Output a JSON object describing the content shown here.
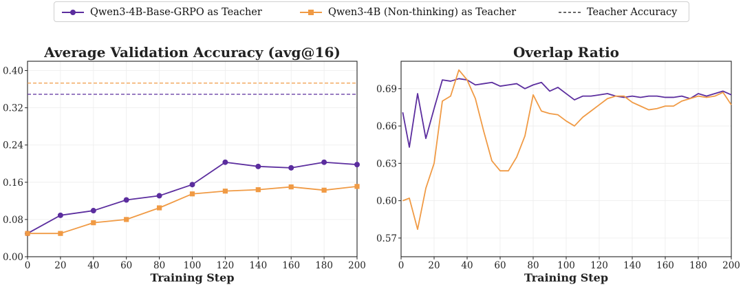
{
  "legend": {
    "items": [
      {
        "label": "Qwen3-4B-Base-GRPO as Teacher",
        "color": "#5b2d9e",
        "marker": "circle",
        "style": "solid"
      },
      {
        "label": "Qwen3-4B (Non-thinking) as Teacher",
        "color": "#f09a44",
        "marker": "square",
        "style": "solid"
      },
      {
        "label": "Teacher Accuracy",
        "color": "#333333",
        "marker": "none",
        "style": "dashed"
      }
    ]
  },
  "chart_data": [
    {
      "type": "line",
      "title": "Average Validation Accuracy (avg@16)",
      "xlabel": "Training Step",
      "ylabel": "",
      "xlim": [
        0,
        200
      ],
      "ylim": [
        0,
        0.42
      ],
      "xticks": [
        0,
        20,
        40,
        60,
        80,
        100,
        120,
        140,
        160,
        180,
        200
      ],
      "yticks": [
        0.0,
        0.08,
        0.16,
        0.24,
        0.32,
        0.4
      ],
      "ytick_labels": [
        "0.00",
        "0.08",
        "0.16",
        "0.24",
        "0.32",
        "0.40"
      ],
      "grid": true,
      "x": [
        0,
        20,
        40,
        60,
        80,
        100,
        120,
        140,
        160,
        180,
        200
      ],
      "series": [
        {
          "name": "Qwen3-4B-Base-GRPO as Teacher",
          "color": "#5b2d9e",
          "marker": "circle",
          "values": [
            0.05,
            0.089,
            0.099,
            0.122,
            0.131,
            0.155,
            0.203,
            0.194,
            0.191,
            0.203,
            0.198
          ]
        },
        {
          "name": "Qwen3-4B (Non-thinking) as Teacher",
          "color": "#f09a44",
          "marker": "square",
          "values": [
            0.05,
            0.05,
            0.073,
            0.08,
            0.105,
            0.135,
            0.141,
            0.144,
            0.15,
            0.143,
            0.151
          ]
        }
      ],
      "reference_lines": [
        {
          "name": "Teacher Accuracy",
          "teacher": "Qwen3-4B-Base-GRPO as Teacher",
          "color": "#5b2d9e",
          "y": 0.349
        },
        {
          "name": "Teacher Accuracy",
          "teacher": "Qwen3-4B (Non-thinking) as Teacher",
          "color": "#f09a44",
          "y": 0.373
        }
      ]
    },
    {
      "type": "line",
      "title": "Overlap Ratio",
      "xlabel": "Training Step",
      "ylabel": "",
      "xlim": [
        0,
        200
      ],
      "ylim": [
        0.555,
        0.712
      ],
      "xticks": [
        0,
        20,
        40,
        60,
        80,
        100,
        120,
        140,
        160,
        180,
        200
      ],
      "yticks": [
        0.57,
        0.6,
        0.63,
        0.66,
        0.69
      ],
      "ytick_labels": [
        "0.57",
        "0.60",
        "0.63",
        "0.66",
        "0.69"
      ],
      "grid": true,
      "x": [
        1,
        5,
        10,
        15,
        20,
        25,
        30,
        35,
        40,
        45,
        50,
        55,
        60,
        65,
        70,
        75,
        80,
        85,
        90,
        95,
        100,
        105,
        110,
        115,
        120,
        125,
        130,
        135,
        140,
        145,
        150,
        155,
        160,
        165,
        170,
        175,
        180,
        185,
        190,
        195,
        200
      ],
      "series": [
        {
          "name": "Qwen3-4B-Base-GRPO as Teacher",
          "color": "#5b2d9e",
          "values": [
            0.671,
            0.643,
            0.686,
            0.65,
            0.674,
            0.697,
            0.696,
            0.698,
            0.697,
            0.693,
            0.694,
            0.695,
            0.692,
            0.693,
            0.694,
            0.69,
            0.693,
            0.695,
            0.688,
            0.691,
            0.686,
            0.681,
            0.684,
            0.684,
            0.685,
            0.686,
            0.684,
            0.683,
            0.684,
            0.683,
            0.684,
            0.684,
            0.683,
            0.683,
            0.684,
            0.682,
            0.686,
            0.684,
            0.686,
            0.688,
            0.685
          ]
        },
        {
          "name": "Qwen3-4B (Non-thinking) as Teacher",
          "color": "#f09a44",
          "values": [
            0.6,
            0.602,
            0.577,
            0.61,
            0.63,
            0.68,
            0.684,
            0.705,
            0.697,
            0.682,
            0.656,
            0.632,
            0.624,
            0.624,
            0.635,
            0.652,
            0.685,
            0.672,
            0.67,
            0.669,
            0.664,
            0.66,
            0.667,
            0.672,
            0.677,
            0.682,
            0.684,
            0.684,
            0.679,
            0.676,
            0.673,
            0.674,
            0.676,
            0.676,
            0.68,
            0.682,
            0.684,
            0.683,
            0.684,
            0.687,
            0.677
          ]
        }
      ]
    }
  ]
}
